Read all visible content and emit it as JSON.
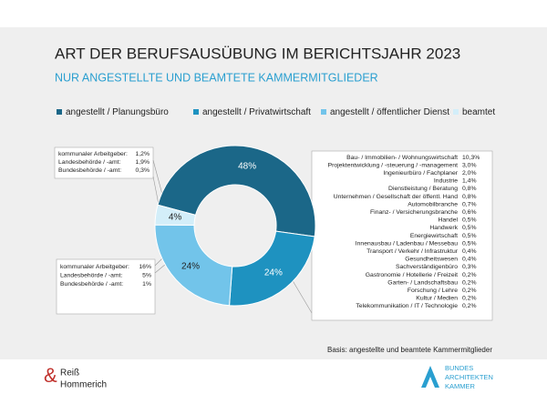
{
  "chart_data": {
    "type": "pie",
    "title": "ART DER BERUFSAUSÜBUNG IM BERICHTSJAHR 2023",
    "subtitle": "NUR ANGESTELLTE UND BEAMTETE KAMMERMITGLIEDER",
    "categories": [
      "angestellt / Planungsbüro",
      "angestellt / Privatwirtschaft",
      "angestellt / öffentlicher Dienst",
      "beamtet"
    ],
    "values": [
      48,
      24,
      24,
      4
    ],
    "value_labels": [
      "48%",
      "24%",
      "24%",
      "4%"
    ],
    "colors": [
      "#1b6788",
      "#1e92c0",
      "#72c4ea",
      "#d3eef9"
    ],
    "donut": true,
    "annotations": [
      {
        "lines": [
          [
            "kommunaler Arbeitgeber:",
            "1,2%"
          ],
          [
            "Landesbehörde / -amt:",
            "1,9%"
          ],
          [
            "Bundesbehörde / -amt:",
            "0,3%"
          ]
        ]
      },
      {
        "lines": [
          [
            "kommunaler Arbeitgeber:",
            "16%"
          ],
          [
            "Landesbehörde / -amt:",
            "5%"
          ],
          [
            "Bundesbehörde / -amt:",
            "1%"
          ]
        ]
      },
      {
        "lines": [
          [
            "Bau- / Immobilien- / Wohnungswirtschaft",
            "10,3%"
          ],
          [
            "Projektentwicklung / -steuerung / -management",
            "3,0%"
          ],
          [
            "Ingenieurbüro / Fachplaner",
            "2,0%"
          ],
          [
            "Industrie",
            "1,4%"
          ],
          [
            "Dienstleistung / Beratung",
            "0,8%"
          ],
          [
            "Unternehmen / Gesellschaft der öffentl. Hand",
            "0,8%"
          ],
          [
            "Automobilbranche",
            "0,7%"
          ],
          [
            "Finanz- / Versicherungsbranche",
            "0,6%"
          ],
          [
            "Handel",
            "0,5%"
          ],
          [
            "Handwerk",
            "0,5%"
          ],
          [
            "Energiewirtschaft",
            "0,5%"
          ],
          [
            "Innenausbau / Ladenbau / Messebau",
            "0,5%"
          ],
          [
            "Transport / Verkehr / Infrastruktur",
            "0,4%"
          ],
          [
            "Gesundheitswesen",
            "0,4%"
          ],
          [
            "Sachverständigenbüro",
            "0,3%"
          ],
          [
            "Gastronomie / Hotellerie / Freizeit",
            "0,2%"
          ],
          [
            "Garten- / Landschaftsbau",
            "0,2%"
          ],
          [
            "Forschung / Lehre",
            "0,2%"
          ],
          [
            "Kultur / Medien",
            "0,2%"
          ],
          [
            "Telekommunikation / IT / Technologie",
            "0,2%"
          ]
        ]
      }
    ],
    "note": "Basis: angestellte und beamtete Kammermitglieder"
  },
  "footer": {
    "left_logo": [
      "Reiß",
      "Hommerich"
    ],
    "right_logo": [
      "BUNDES",
      "ARCHITEKTEN",
      "KAMMER"
    ]
  }
}
